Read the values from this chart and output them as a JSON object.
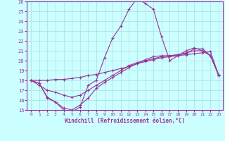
{
  "xlabel": "Windchill (Refroidissement éolien,°C)",
  "xlim": [
    -0.5,
    23.5
  ],
  "ylim": [
    15,
    26
  ],
  "yticks": [
    15,
    16,
    17,
    18,
    19,
    20,
    21,
    22,
    23,
    24,
    25,
    26
  ],
  "xticks": [
    0,
    1,
    2,
    3,
    4,
    5,
    6,
    7,
    8,
    9,
    10,
    11,
    12,
    13,
    14,
    15,
    16,
    17,
    18,
    19,
    20,
    21,
    22,
    23
  ],
  "bg_color": "#ccffff",
  "line_color": "#993399",
  "grid_color": "#aadddd",
  "lines": [
    {
      "x": [
        0,
        1,
        2,
        3,
        4,
        5,
        6,
        7,
        8,
        9,
        10,
        11,
        12,
        13,
        14,
        15,
        16,
        17,
        18,
        19,
        20,
        21,
        22,
        23
      ],
      "y": [
        18.0,
        17.7,
        16.2,
        15.8,
        15.0,
        14.8,
        15.3,
        17.5,
        18.0,
        20.3,
        22.3,
        23.5,
        25.2,
        26.3,
        25.8,
        25.2,
        22.4,
        20.0,
        20.5,
        21.0,
        21.3,
        21.0,
        20.5,
        18.5
      ]
    },
    {
      "x": [
        0,
        1,
        2,
        3,
        4,
        5,
        6,
        7,
        8,
        9,
        10,
        11,
        12,
        13,
        14,
        15,
        16,
        17,
        18,
        19,
        20,
        21,
        22,
        23
      ],
      "y": [
        18.0,
        18.0,
        18.0,
        18.1,
        18.1,
        18.2,
        18.3,
        18.5,
        18.6,
        18.8,
        19.0,
        19.2,
        19.4,
        19.7,
        19.9,
        20.1,
        20.3,
        20.4,
        20.5,
        20.6,
        20.7,
        20.8,
        20.9,
        18.5
      ]
    },
    {
      "x": [
        0,
        1,
        2,
        3,
        4,
        5,
        6,
        7,
        8,
        9,
        10,
        11,
        12,
        13,
        14,
        15,
        16,
        17,
        18,
        19,
        20,
        21,
        22,
        23
      ],
      "y": [
        18.0,
        17.7,
        16.3,
        15.8,
        15.2,
        15.0,
        15.5,
        16.2,
        17.2,
        17.8,
        18.3,
        18.8,
        19.3,
        19.7,
        20.1,
        20.4,
        20.5,
        20.5,
        20.6,
        20.7,
        21.2,
        21.2,
        20.5,
        18.6
      ]
    },
    {
      "x": [
        0,
        1,
        2,
        3,
        4,
        5,
        6,
        7,
        8,
        9,
        10,
        11,
        12,
        13,
        14,
        15,
        16,
        17,
        18,
        19,
        20,
        21,
        22,
        23
      ],
      "y": [
        18.0,
        17.5,
        17.0,
        16.8,
        16.5,
        16.3,
        16.5,
        17.0,
        17.5,
        18.0,
        18.5,
        19.0,
        19.5,
        19.8,
        20.0,
        20.2,
        20.4,
        20.5,
        20.6,
        20.8,
        21.0,
        21.0,
        20.5,
        18.5
      ]
    }
  ]
}
